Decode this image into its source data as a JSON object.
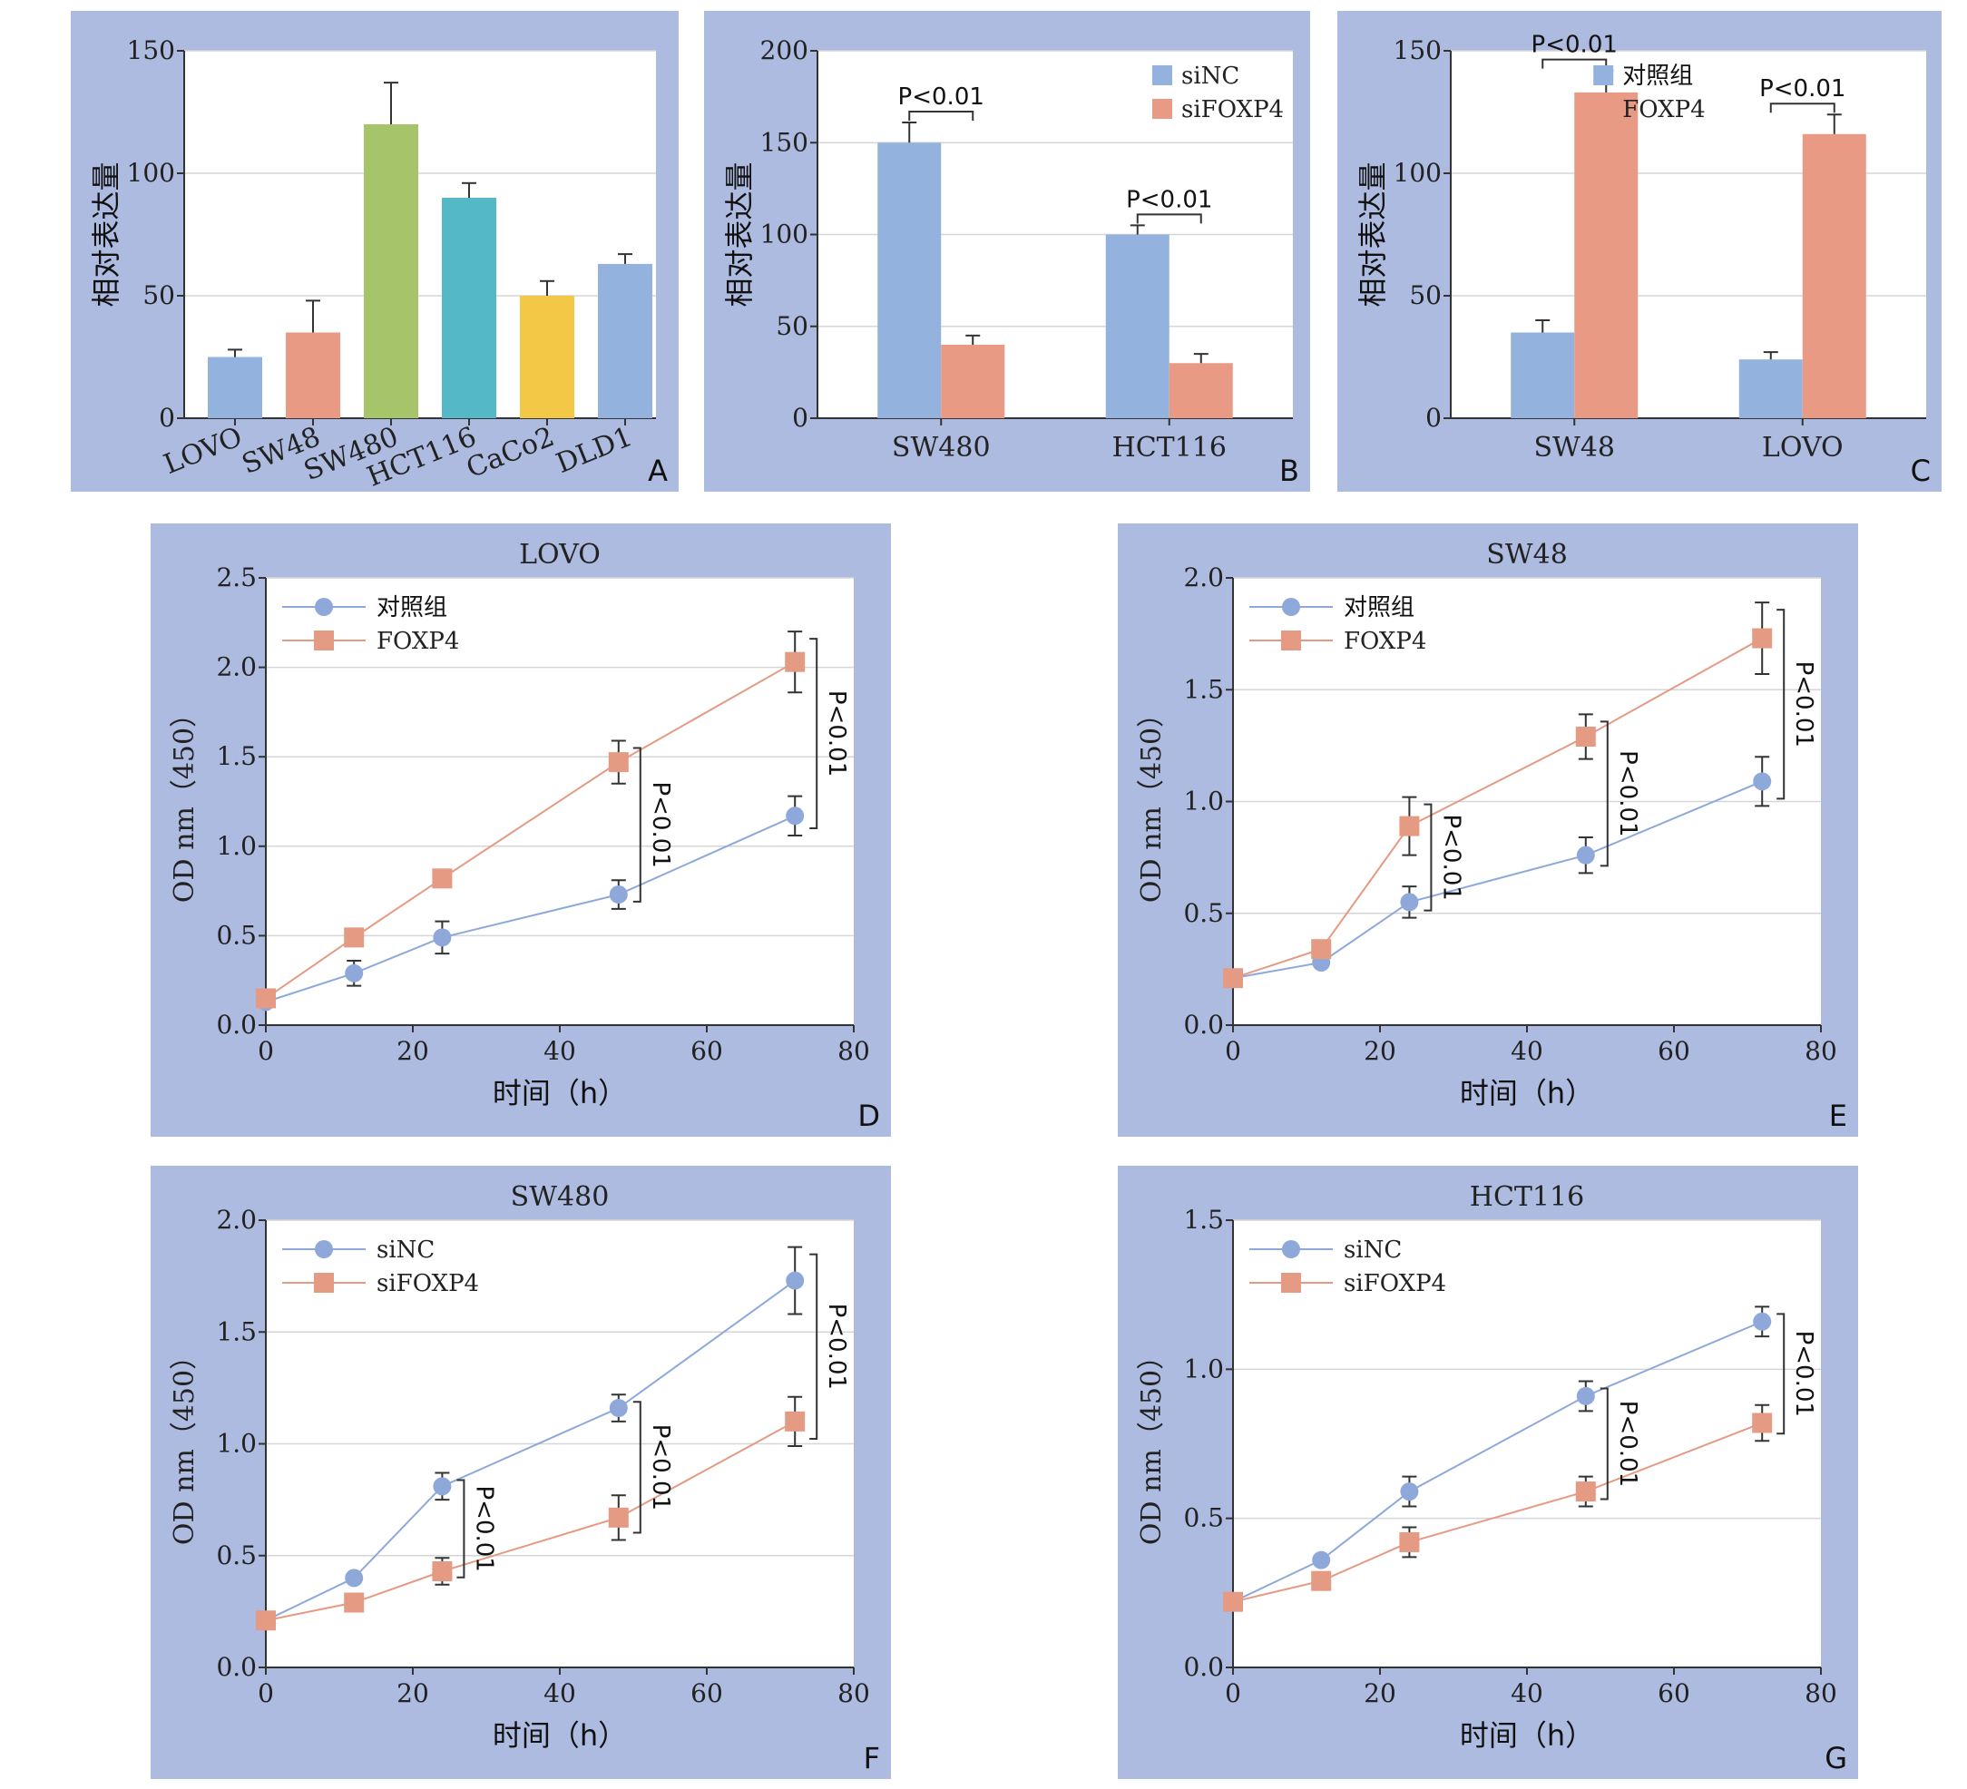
{
  "colors": {
    "panel_bg": "#aebbe0",
    "plot_bg": "#ffffff",
    "grid": "#d6d6d6",
    "axis": "#333333",
    "blue": "#93b2dd",
    "salmon": "#e99a85",
    "green": "#a6c46a",
    "teal": "#55b8c6",
    "yellow": "#f3c846",
    "line_blue": "#8ea9d9",
    "line_salmon": "#e49a83"
  },
  "chart_data": [
    {
      "id": "A",
      "type": "bar",
      "panel_label": "A",
      "ylabel": "相对表达量",
      "ylim": [
        0,
        150
      ],
      "yticks": [
        0,
        50,
        100,
        150
      ],
      "categories": [
        "LOVO",
        "SW48",
        "SW480",
        "HCT116",
        "CaCo2",
        "DLD1"
      ],
      "values": [
        25,
        35,
        120,
        90,
        50,
        63
      ],
      "errors": [
        3,
        13,
        17,
        6,
        6,
        4
      ],
      "bar_colors": [
        "#93b2dd",
        "#e99a85",
        "#a6c46a",
        "#55b8c6",
        "#f3c846",
        "#93b2dd"
      ],
      "grid": true
    },
    {
      "id": "B",
      "type": "bar",
      "panel_label": "B",
      "ylabel": "相对表达量",
      "ylim": [
        0,
        200
      ],
      "yticks": [
        0,
        50,
        100,
        150,
        200
      ],
      "categories": [
        "SW480",
        "HCT116"
      ],
      "series": [
        {
          "name": "siNC",
          "values": [
            150,
            100
          ],
          "errors": [
            11,
            5
          ],
          "color": "#93b2dd"
        },
        {
          "name": "siFOXP4",
          "values": [
            40,
            30
          ],
          "errors": [
            5,
            5
          ],
          "color": "#e99a85"
        }
      ],
      "annotations": [
        "P<0.01",
        "P<0.01"
      ],
      "legend": "top-right",
      "grid": true
    },
    {
      "id": "C",
      "type": "bar",
      "panel_label": "C",
      "ylabel": "相对表达量",
      "ylim": [
        0,
        150
      ],
      "yticks": [
        0,
        50,
        100,
        150
      ],
      "categories": [
        "SW48",
        "LOVO"
      ],
      "series": [
        {
          "name": "对照组",
          "values": [
            35,
            24
          ],
          "errors": [
            5,
            3
          ],
          "color": "#93b2dd"
        },
        {
          "name": "FOXP4",
          "values": [
            133,
            116
          ],
          "errors": [
            9,
            8
          ],
          "color": "#e99a85"
        }
      ],
      "annotations": [
        "P<0.01",
        "P<0.01"
      ],
      "legend": "top-center",
      "grid": true
    },
    {
      "id": "D",
      "type": "line",
      "panel_label": "D",
      "title": "LOVO",
      "xlabel": "时间（h）",
      "ylabel": "OD nm（450）",
      "xlim": [
        0,
        80
      ],
      "xticks": [
        0,
        20,
        40,
        60,
        80
      ],
      "ylim": [
        0,
        2.5
      ],
      "yticks": [
        "0.0",
        "0.5",
        "1.0",
        "1.5",
        "2.0",
        "2.5"
      ],
      "x": [
        0,
        12,
        24,
        48,
        72
      ],
      "series": [
        {
          "name": "对照组",
          "marker": "circle",
          "color": "#8ea9d9",
          "values": [
            0.13,
            0.29,
            0.49,
            0.73,
            1.17
          ],
          "errors": [
            0.02,
            0.07,
            0.09,
            0.08,
            0.11
          ]
        },
        {
          "name": "FOXP4",
          "marker": "square",
          "color": "#e49a83",
          "values": [
            0.15,
            0.49,
            0.82,
            1.47,
            2.03
          ],
          "errors": [
            0.02,
            0.03,
            0.03,
            0.12,
            0.17
          ]
        }
      ],
      "significance": [
        {
          "x": 48,
          "label": "P<0.01"
        },
        {
          "x": 72,
          "label": "P<0.01"
        }
      ],
      "legend": "top-left",
      "grid": true
    },
    {
      "id": "E",
      "type": "line",
      "panel_label": "E",
      "title": "SW48",
      "xlabel": "时间（h）",
      "ylabel": "OD nm（450）",
      "xlim": [
        0,
        80
      ],
      "xticks": [
        0,
        20,
        40,
        60,
        80
      ],
      "ylim": [
        0,
        2.0
      ],
      "yticks": [
        "0.0",
        "0.5",
        "1.0",
        "1.5",
        "2.0"
      ],
      "x": [
        0,
        12,
        24,
        48,
        72
      ],
      "series": [
        {
          "name": "对照组",
          "marker": "circle",
          "color": "#8ea9d9",
          "values": [
            0.21,
            0.28,
            0.55,
            0.76,
            1.09
          ],
          "errors": [
            0.02,
            0.02,
            0.07,
            0.08,
            0.11
          ]
        },
        {
          "name": "FOXP4",
          "marker": "square",
          "color": "#e49a83",
          "values": [
            0.21,
            0.34,
            0.89,
            1.29,
            1.73
          ],
          "errors": [
            0.02,
            0.02,
            0.13,
            0.1,
            0.16
          ]
        }
      ],
      "significance": [
        {
          "x": 24,
          "label": "P<0.01"
        },
        {
          "x": 48,
          "label": "P<0.01"
        },
        {
          "x": 72,
          "label": "P<0.01"
        }
      ],
      "legend": "top-left",
      "grid": true
    },
    {
      "id": "F",
      "type": "line",
      "panel_label": "F",
      "title": "SW480",
      "xlabel": "时间（h）",
      "ylabel": "OD nm（450）",
      "xlim": [
        0,
        80
      ],
      "xticks": [
        0,
        20,
        40,
        60,
        80
      ],
      "ylim": [
        0,
        2.0
      ],
      "yticks": [
        "0.0",
        "0.5",
        "1.0",
        "1.5",
        "2.0"
      ],
      "x": [
        0,
        12,
        24,
        48,
        72
      ],
      "series": [
        {
          "name": "siNC",
          "marker": "circle",
          "color": "#8ea9d9",
          "values": [
            0.21,
            0.4,
            0.81,
            1.16,
            1.73
          ],
          "errors": [
            0.02,
            0.02,
            0.06,
            0.06,
            0.15
          ]
        },
        {
          "name": "siFOXP4",
          "marker": "square",
          "color": "#e49a83",
          "values": [
            0.21,
            0.29,
            0.43,
            0.67,
            1.1
          ],
          "errors": [
            0.02,
            0.02,
            0.06,
            0.1,
            0.11
          ]
        }
      ],
      "significance": [
        {
          "x": 24,
          "label": "P<0.01"
        },
        {
          "x": 48,
          "label": "P<0.01"
        },
        {
          "x": 72,
          "label": "P<0.01"
        }
      ],
      "legend": "top-left",
      "grid": true
    },
    {
      "id": "G",
      "type": "line",
      "panel_label": "G",
      "title": "HCT116",
      "xlabel": "时间（h）",
      "ylabel": "OD nm（450）",
      "xlim": [
        0,
        80
      ],
      "xticks": [
        0,
        20,
        40,
        60,
        80
      ],
      "ylim": [
        0,
        1.5
      ],
      "yticks": [
        "0.0",
        "0.5",
        "1.0",
        "1.5"
      ],
      "x": [
        0,
        12,
        24,
        48,
        72
      ],
      "series": [
        {
          "name": "siNC",
          "marker": "circle",
          "color": "#8ea9d9",
          "values": [
            0.22,
            0.36,
            0.59,
            0.91,
            1.16
          ],
          "errors": [
            0.02,
            0.01,
            0.05,
            0.05,
            0.05
          ]
        },
        {
          "name": "siFOXP4",
          "marker": "square",
          "color": "#e49a83",
          "values": [
            0.22,
            0.29,
            0.42,
            0.59,
            0.82
          ],
          "errors": [
            0.02,
            0.01,
            0.05,
            0.05,
            0.06
          ]
        }
      ],
      "significance": [
        {
          "x": 48,
          "label": "P<0.01"
        },
        {
          "x": 72,
          "label": "P<0.01"
        }
      ],
      "legend": "top-left",
      "grid": true
    }
  ]
}
